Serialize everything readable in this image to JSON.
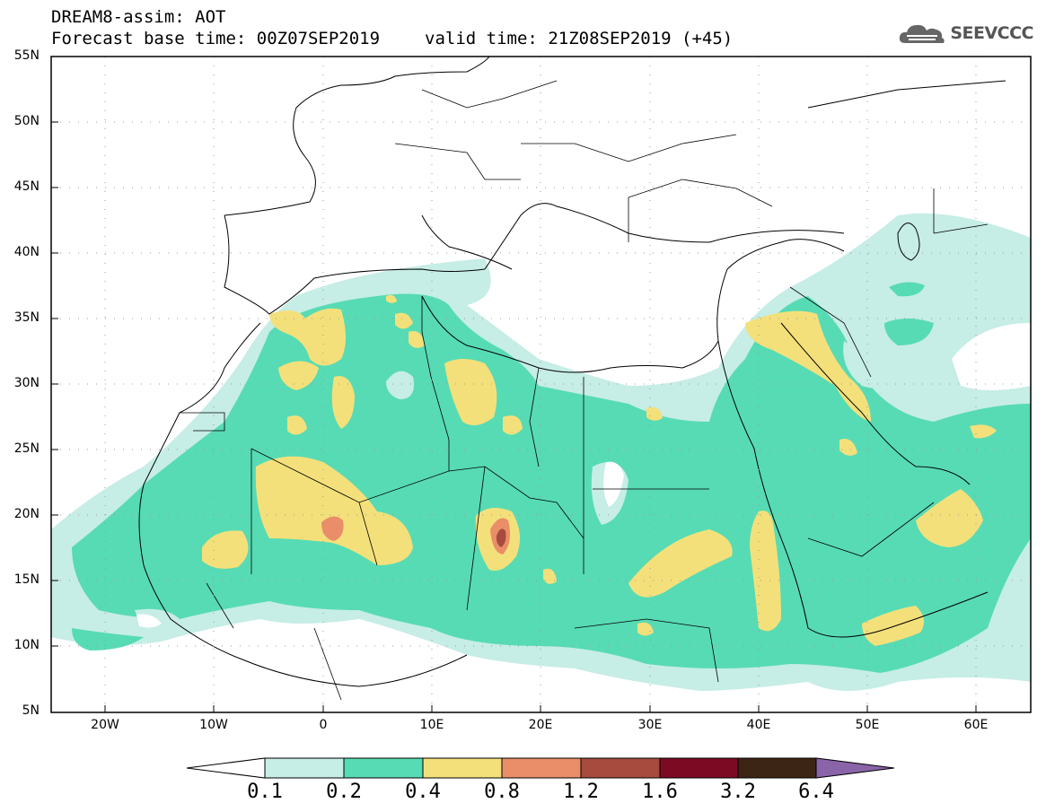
{
  "title": {
    "line1": "DREAM8-assim: AOT",
    "base_time": "Forecast base time: 00Z07SEP2019",
    "valid_time": "valid time: 21Z08SEP2019 (+45)"
  },
  "logo": {
    "text": "SEEVCCC",
    "icon": "cloud-icon"
  },
  "map": {
    "lat_labels": [
      "55N",
      "50N",
      "45N",
      "40N",
      "35N",
      "30N",
      "25N",
      "20N",
      "15N",
      "10N",
      "5N"
    ],
    "lon_labels": [
      "20W",
      "10W",
      "0",
      "10E",
      "20E",
      "30E",
      "40E",
      "50E",
      "60E"
    ],
    "extent": {
      "lon": [
        -25,
        65
      ],
      "lat": [
        5,
        55
      ]
    },
    "grid": true
  },
  "colorbar": {
    "labels": [
      "0.1",
      "0.2",
      "0.4",
      "0.8",
      "1.2",
      "1.6",
      "3.2",
      "6.4"
    ],
    "colors": [
      "#ffffff",
      "#c6ede6",
      "#57dbb4",
      "#f4e07a",
      "#e98e68",
      "#a64b3e",
      "#7d0a23",
      "#3d2515",
      "#8a64a8"
    ]
  }
}
